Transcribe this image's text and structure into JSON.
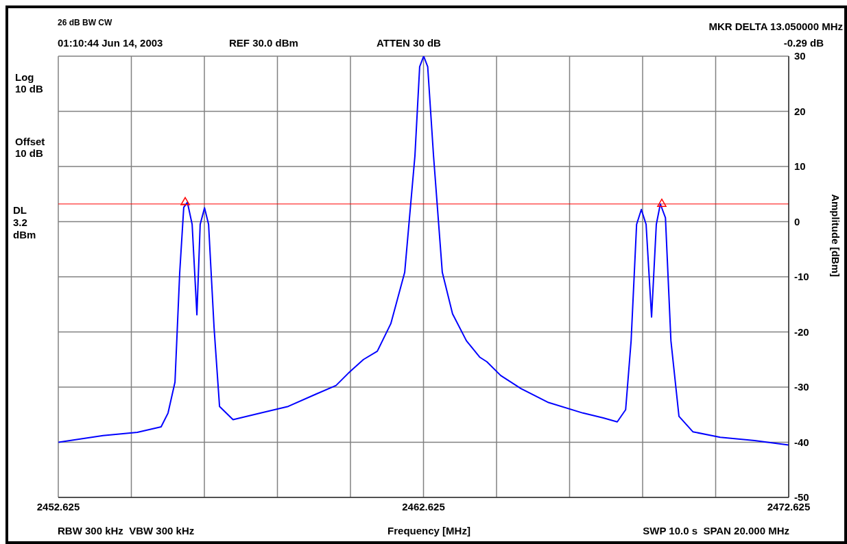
{
  "chart_data": {
    "type": "line",
    "xlabel": "Frequency [MHz]",
    "ylabel": "Amplitude [dBm]",
    "annotations": [
      "26 dB BW CW",
      "01:10:44 Jun 14, 2003",
      "REF 30.0 dBm",
      "ATTEN 30 dB",
      "MKR DELTA 13.050000 MHz",
      "-0.29 dB",
      "Log\n10 dB",
      "Offset\n10 dB",
      "RBW 300 kHz  VBW 300 kHz",
      "SWP 10.0 s  SPAN 20.000 MHz"
    ],
    "xlim": [
      2452.625,
      2472.625
    ],
    "xticks": [
      2452.625,
      {
        "value": 2454.625,
        "label": null
      },
      {
        "value": 2456.625,
        "label": null
      },
      {
        "value": 2458.625,
        "label": null
      },
      {
        "value": 2460.625,
        "label": null
      },
      2462.625,
      {
        "value": 2464.625,
        "label": null
      },
      {
        "value": 2466.625,
        "label": null
      },
      {
        "value": 2468.625,
        "label": null
      },
      {
        "value": 2470.625,
        "label": null
      },
      2472.625
    ],
    "ylim": [
      -50,
      30
    ],
    "yticks": [
      -50,
      -40,
      -30,
      -20,
      -10,
      0,
      10,
      20,
      30
    ],
    "grid": true,
    "ref_lines": [
      {
        "axis": "y",
        "value": 3.2,
        "label": "DL\n3.2\ndBm",
        "color": "#ff0000"
      }
    ],
    "series": [
      {
        "color": "#0000ff",
        "x": [
          2452.63,
          2453.85,
          2454.79,
          2455.44,
          2455.63,
          2455.82,
          2455.95,
          2456.06,
          2456.16,
          2456.29,
          2456.42,
          2456.51,
          2456.63,
          2456.74,
          2456.89,
          2457.04,
          2457.41,
          2458.17,
          2458.92,
          2459.67,
          2460.23,
          2460.61,
          2460.98,
          2461.36,
          2461.73,
          2462.11,
          2462.39,
          2462.52,
          2462.63,
          2462.74,
          2462.9,
          2463.14,
          2463.42,
          2463.8,
          2464.17,
          2464.36,
          2464.74,
          2465.3,
          2466.05,
          2466.99,
          2467.55,
          2467.93,
          2468.16,
          2468.31,
          2468.46,
          2468.59,
          2468.72,
          2468.87,
          2469.0,
          2469.11,
          2469.25,
          2469.4,
          2469.62,
          2470.0,
          2470.75,
          2471.69,
          2472.62
        ],
        "values": [
          -40.0,
          -38.8,
          -38.2,
          -37.2,
          -34.7,
          -29.1,
          -9.2,
          2.6,
          3.5,
          -0.5,
          -16.9,
          -0.5,
          2.5,
          -0.5,
          -19.2,
          -33.5,
          -35.9,
          -34.7,
          -33.5,
          -31.3,
          -29.7,
          -27.2,
          -25.0,
          -23.5,
          -18.5,
          -9.2,
          11.9,
          28.1,
          30.0,
          28.1,
          11.9,
          -9.2,
          -16.7,
          -21.6,
          -24.6,
          -25.4,
          -27.9,
          -30.3,
          -32.8,
          -34.7,
          -35.6,
          -36.3,
          -34.1,
          -21.6,
          -0.5,
          2.2,
          -0.5,
          -17.3,
          -0.5,
          3.2,
          0.7,
          -21.6,
          -35.3,
          -38.1,
          -39.1,
          -39.7,
          -40.5
        ]
      },
      {
        "type": "scatter",
        "color": "#ff0000",
        "marker": "triangle",
        "x": [
          2456.1,
          2469.15
        ],
        "values": [
          3.5,
          3.2
        ]
      }
    ]
  }
}
